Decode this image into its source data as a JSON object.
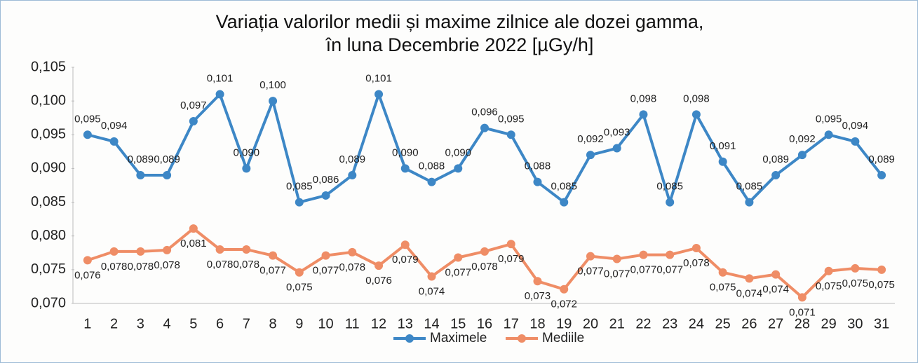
{
  "chart_data": {
    "type": "line",
    "title": "Variația valorilor medii și maxime zilnice ale dozei gamma, în luna Decembrie 2022 [µGy/h]",
    "categories": [
      "1",
      "2",
      "3",
      "4",
      "5",
      "6",
      "7",
      "8",
      "9",
      "10",
      "11",
      "12",
      "13",
      "14",
      "15",
      "16",
      "17",
      "18",
      "19",
      "20",
      "21",
      "22",
      "23",
      "24",
      "25",
      "26",
      "27",
      "28",
      "29",
      "30",
      "31"
    ],
    "series": [
      {
        "name": "Maximele",
        "color": "#3d87c6",
        "values": [
          0.095,
          0.094,
          0.089,
          0.089,
          0.097,
          0.101,
          0.09,
          0.1,
          0.085,
          0.086,
          0.089,
          0.101,
          0.09,
          0.088,
          0.09,
          0.096,
          0.095,
          0.088,
          0.085,
          0.092,
          0.093,
          0.098,
          0.085,
          0.098,
          0.091,
          0.085,
          0.089,
          0.092,
          0.095,
          0.094,
          0.089
        ],
        "value_labels": [
          "0,095",
          "0,094",
          "0,089",
          "0,089",
          "0,097",
          "0,101",
          "0,090",
          "0,100",
          "0,085",
          "0,086",
          "0,089",
          "0,101",
          "0,090",
          "0,088",
          "0,090",
          "0,096",
          "0,095",
          "0,088",
          "0,085",
          "0,092",
          "0,093",
          "0,098",
          "0,085",
          "0,098",
          "0,091",
          "0,085",
          "0,089",
          "0,092",
          "0,095",
          "0,094",
          "0,089"
        ]
      },
      {
        "name": "Mediile",
        "color": "#ef8d66",
        "values": [
          0.0764,
          0.0777,
          0.0777,
          0.0779,
          0.0811,
          0.078,
          0.078,
          0.0771,
          0.0746,
          0.0771,
          0.0776,
          0.0756,
          0.0787,
          0.074,
          0.0768,
          0.0777,
          0.0788,
          0.0733,
          0.0721,
          0.077,
          0.0766,
          0.0772,
          0.0772,
          0.0782,
          0.0746,
          0.0737,
          0.0743,
          0.0709,
          0.0748,
          0.0752,
          0.075
        ],
        "value_labels": [
          "0,076",
          "0,078",
          "0,078",
          "0,078",
          "0,081",
          "0,078",
          "0,078",
          "0,077",
          "0,075",
          "0,077",
          "0,078",
          "0,076",
          "0,079",
          "0,074",
          "0,077",
          "0,078",
          "0,079",
          "0,073",
          "0,072",
          "0,077",
          "0,077",
          "0,077",
          "0,077",
          "0,078",
          "0,075",
          "0,074",
          "0,074",
          "0,071",
          "0,075",
          "0,075",
          "0,075"
        ]
      }
    ],
    "ylim": [
      0.07,
      0.105
    ],
    "yticks": [
      {
        "value": 0.07,
        "label": "0,070"
      },
      {
        "value": 0.075,
        "label": "0,075"
      },
      {
        "value": 0.08,
        "label": "0,080"
      },
      {
        "value": 0.085,
        "label": "0,085"
      },
      {
        "value": 0.09,
        "label": "0,090"
      },
      {
        "value": 0.095,
        "label": "0,095"
      },
      {
        "value": 0.1,
        "label": "0,100"
      },
      {
        "value": 0.105,
        "label": "0,105"
      }
    ],
    "legend": "bottom"
  }
}
